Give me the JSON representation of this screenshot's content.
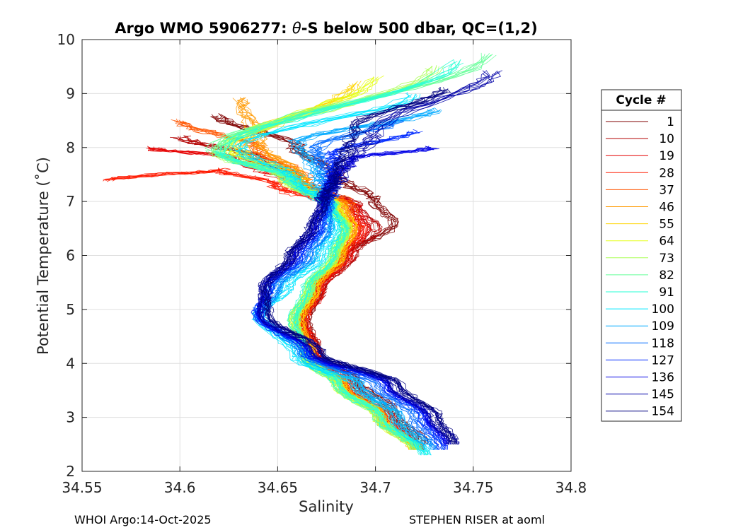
{
  "chart_data": {
    "type": "line",
    "title_prefix": "Argo WMO 5906277: ",
    "title_theta": "θ",
    "title_suffix": "-S below 500 dbar,  QC=(1,2)",
    "xlabel": "Salinity",
    "ylabel": "Potential Temperature (˚C)",
    "xlim": [
      34.55,
      34.8
    ],
    "ylim": [
      2,
      10
    ],
    "xticks": [
      "34.55",
      "34.6",
      "34.65",
      "34.7",
      "34.75",
      "34.8"
    ],
    "yticks": [
      "2",
      "3",
      "4",
      "5",
      "6",
      "7",
      "8",
      "9",
      "10"
    ],
    "grid": true,
    "legend": {
      "title": "Cycle #",
      "placement": "right",
      "entries": [
        {
          "label": "1",
          "color": "#800000"
        },
        {
          "label": "10",
          "color": "#b30000"
        },
        {
          "label": "19",
          "color": "#e60000"
        },
        {
          "label": "28",
          "color": "#ff1a00"
        },
        {
          "label": "37",
          "color": "#ff5500"
        },
        {
          "label": "46",
          "color": "#ff9900"
        },
        {
          "label": "55",
          "color": "#ffd500"
        },
        {
          "label": "64",
          "color": "#e6ff1a"
        },
        {
          "label": "73",
          "color": "#aaff55"
        },
        {
          "label": "82",
          "color": "#66ff99"
        },
        {
          "label": "91",
          "color": "#2affd5"
        },
        {
          "label": "100",
          "color": "#00e6ff"
        },
        {
          "label": "109",
          "color": "#00aaff"
        },
        {
          "label": "118",
          "color": "#006aff"
        },
        {
          "label": "127",
          "color": "#002aff"
        },
        {
          "label": "136",
          "color": "#0000e6"
        },
        {
          "label": "145",
          "color": "#0000a6"
        },
        {
          "label": "154",
          "color": "#000080"
        }
      ]
    },
    "series": [
      {
        "cycle": "1",
        "color": "#800000",
        "s": [
          34.62,
          34.66,
          34.68,
          34.7,
          34.71,
          34.685,
          34.672,
          34.665,
          34.67,
          34.69,
          34.71,
          34.725
        ],
        "t": [
          8.6,
          8.0,
          7.5,
          7.0,
          6.6,
          6.0,
          5.4,
          4.8,
          4.2,
          3.7,
          3.1,
          2.5
        ]
      },
      {
        "cycle": "10",
        "color": "#b30000",
        "s": [
          34.6,
          34.64,
          34.66,
          34.69,
          34.7,
          34.688,
          34.672,
          34.662,
          34.67,
          34.688,
          34.708,
          34.722
        ],
        "t": [
          8.2,
          7.8,
          7.4,
          6.9,
          6.5,
          6.0,
          5.4,
          4.8,
          4.2,
          3.6,
          3.0,
          2.4
        ]
      },
      {
        "cycle": "19",
        "color": "#e60000",
        "s": [
          34.585,
          34.63,
          34.66,
          34.69,
          34.695,
          34.686,
          34.672,
          34.663,
          34.67,
          34.686,
          34.706,
          34.722
        ],
        "t": [
          8.0,
          7.8,
          7.3,
          6.9,
          6.5,
          6.0,
          5.4,
          4.8,
          4.1,
          3.6,
          3.0,
          2.4
        ]
      },
      {
        "cycle": "28",
        "color": "#ff1a00",
        "s": [
          34.565,
          34.62,
          34.65,
          34.68,
          34.693,
          34.685,
          34.671,
          34.663,
          34.67,
          34.685,
          34.705,
          34.722
        ],
        "t": [
          7.4,
          7.6,
          7.3,
          6.9,
          6.5,
          6.0,
          5.4,
          4.8,
          4.1,
          3.6,
          3.0,
          2.4
        ]
      },
      {
        "cycle": "37",
        "color": "#ff5500",
        "s": [
          34.6,
          34.64,
          34.665,
          34.688,
          34.69,
          34.683,
          34.67,
          34.662,
          34.668,
          34.684,
          34.704,
          34.721
        ],
        "t": [
          8.5,
          8.0,
          7.4,
          6.9,
          6.5,
          6.0,
          5.4,
          4.8,
          4.1,
          3.6,
          3.0,
          2.4
        ]
      },
      {
        "cycle": "46",
        "color": "#ff9900",
        "s": [
          34.63,
          34.64,
          34.662,
          34.683,
          34.688,
          34.682,
          34.669,
          34.661,
          34.667,
          34.683,
          34.703,
          34.72
        ],
        "t": [
          8.9,
          8.1,
          7.4,
          6.9,
          6.5,
          6.0,
          5.4,
          4.8,
          4.1,
          3.6,
          3.0,
          2.4
        ]
      },
      {
        "cycle": "55",
        "color": "#ffd500",
        "s": [
          34.69,
          34.63,
          34.66,
          34.682,
          34.687,
          34.681,
          34.668,
          34.66,
          34.666,
          34.682,
          34.702,
          34.72
        ],
        "t": [
          9.2,
          8.0,
          7.4,
          6.9,
          6.5,
          6.0,
          5.4,
          4.8,
          4.1,
          3.6,
          3.0,
          2.4
        ]
      },
      {
        "cycle": "64",
        "color": "#e6ff1a",
        "s": [
          34.7,
          34.625,
          34.655,
          34.68,
          34.686,
          34.68,
          34.667,
          34.659,
          34.665,
          34.681,
          34.702,
          34.72
        ],
        "t": [
          9.3,
          8.0,
          7.4,
          6.9,
          6.5,
          6.0,
          5.4,
          4.8,
          4.1,
          3.6,
          3.0,
          2.4
        ]
      },
      {
        "cycle": "73",
        "color": "#aaff55",
        "s": [
          34.73,
          34.62,
          34.655,
          34.678,
          34.685,
          34.679,
          34.666,
          34.658,
          34.664,
          34.68,
          34.701,
          34.72
        ],
        "t": [
          9.5,
          7.9,
          7.4,
          6.9,
          6.5,
          6.0,
          5.4,
          4.8,
          4.1,
          3.6,
          3.0,
          2.4
        ]
      },
      {
        "cycle": "82",
        "color": "#66ff99",
        "s": [
          34.757,
          34.617,
          34.655,
          34.677,
          34.684,
          34.678,
          34.666,
          34.658,
          34.664,
          34.68,
          34.701,
          34.72
        ],
        "t": [
          9.72,
          7.95,
          7.4,
          6.9,
          6.5,
          6.0,
          5.4,
          4.8,
          4.1,
          3.6,
          3.0,
          2.4
        ]
      },
      {
        "cycle": "91",
        "color": "#2affd5",
        "s": [
          34.74,
          34.62,
          34.656,
          34.677,
          34.683,
          34.677,
          34.664,
          34.657,
          34.664,
          34.68,
          34.702,
          34.724
        ],
        "t": [
          9.6,
          7.9,
          7.4,
          6.9,
          6.5,
          6.0,
          5.4,
          4.8,
          4.1,
          3.6,
          3.0,
          2.3
        ]
      },
      {
        "cycle": "100",
        "color": "#00e6ff",
        "s": [
          34.72,
          34.63,
          34.66,
          34.676,
          34.68,
          34.672,
          34.655,
          34.64,
          34.66,
          34.69,
          34.71,
          34.726
        ],
        "t": [
          9.0,
          8.0,
          7.4,
          6.9,
          6.5,
          6.0,
          5.4,
          4.9,
          4.1,
          3.6,
          3.0,
          2.3
        ]
      },
      {
        "cycle": "109",
        "color": "#00aaff",
        "s": [
          34.73,
          34.66,
          34.67,
          34.675,
          34.676,
          34.668,
          34.65,
          34.642,
          34.662,
          34.692,
          34.712,
          34.728
        ],
        "t": [
          8.7,
          8.1,
          7.5,
          7.0,
          6.5,
          6.0,
          5.4,
          4.9,
          4.2,
          3.6,
          3.0,
          2.4
        ]
      },
      {
        "cycle": "118",
        "color": "#006aff",
        "s": [
          34.71,
          34.67,
          34.675,
          34.676,
          34.674,
          34.665,
          34.648,
          34.64,
          34.663,
          34.7,
          34.72,
          34.732
        ],
        "t": [
          8.5,
          8.0,
          7.5,
          7.0,
          6.5,
          6.0,
          5.4,
          4.9,
          4.2,
          3.6,
          3.0,
          2.4
        ]
      },
      {
        "cycle": "127",
        "color": "#002aff",
        "s": [
          34.72,
          34.68,
          34.678,
          34.676,
          34.672,
          34.662,
          34.646,
          34.64,
          34.665,
          34.705,
          34.725,
          34.735
        ],
        "t": [
          8.3,
          7.9,
          7.5,
          7.0,
          6.5,
          6.0,
          5.4,
          4.9,
          4.2,
          3.6,
          3.0,
          2.4
        ]
      },
      {
        "cycle": "136",
        "color": "#0000e6",
        "s": [
          34.73,
          34.69,
          34.68,
          34.675,
          34.67,
          34.66,
          34.645,
          34.642,
          34.668,
          34.708,
          34.728,
          34.738
        ],
        "t": [
          8.0,
          7.8,
          7.4,
          7.0,
          6.5,
          6.0,
          5.4,
          4.9,
          4.2,
          3.6,
          3.0,
          2.5
        ]
      },
      {
        "cycle": "145",
        "color": "#0000a6",
        "s": [
          34.76,
          34.7,
          34.682,
          34.674,
          34.668,
          34.658,
          34.644,
          34.643,
          34.67,
          34.71,
          34.73,
          34.74
        ],
        "t": [
          9.4,
          8.3,
          7.5,
          7.0,
          6.5,
          6.0,
          5.4,
          4.9,
          4.2,
          3.6,
          3.0,
          2.5
        ]
      },
      {
        "cycle": "154",
        "color": "#000080",
        "s": [
          34.735,
          34.69,
          34.68,
          34.674,
          34.667,
          34.656,
          34.643,
          34.645,
          34.672,
          34.712,
          34.732,
          34.74
        ],
        "t": [
          9.1,
          8.4,
          7.5,
          7.0,
          6.5,
          6.0,
          5.4,
          4.9,
          4.2,
          3.6,
          3.0,
          2.5
        ]
      }
    ]
  },
  "footer": {
    "left": "WHOI Argo:14-Oct-2025",
    "right": "STEPHEN RISER at aoml"
  }
}
